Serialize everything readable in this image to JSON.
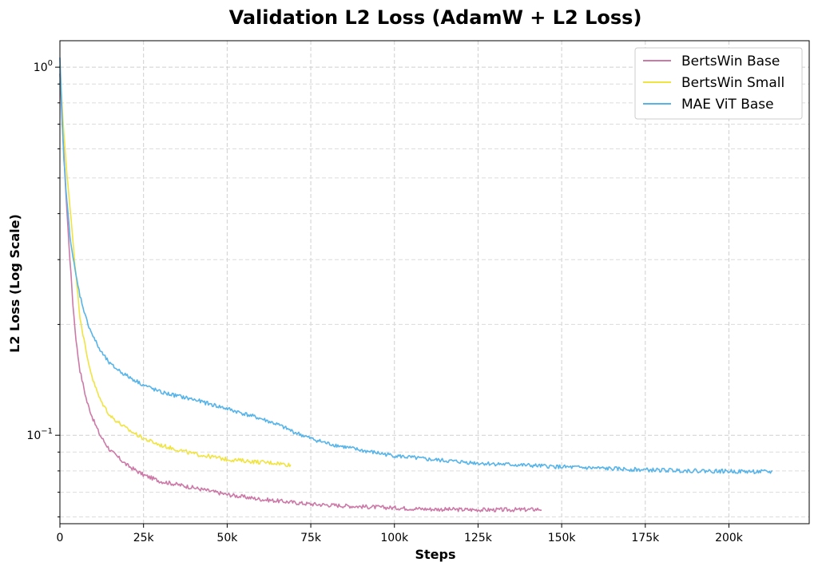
{
  "chart_data": {
    "type": "line",
    "title": "Validation L2 Loss (AdamW + L2 Loss)",
    "xlabel": "Steps",
    "ylabel": "L2 Loss (Log Scale)",
    "yscale": "log",
    "xlim": [
      0,
      224000
    ],
    "ylim": [
      0.0575,
      1.18
    ],
    "grid": true,
    "legend_position": "top-right",
    "x_ticks": [
      {
        "value": 0,
        "label": "0"
      },
      {
        "value": 25000,
        "label": "25k"
      },
      {
        "value": 50000,
        "label": "50k"
      },
      {
        "value": 75000,
        "label": "75k"
      },
      {
        "value": 100000,
        "label": "100k"
      },
      {
        "value": 125000,
        "label": "125k"
      },
      {
        "value": 150000,
        "label": "150k"
      },
      {
        "value": 175000,
        "label": "175k"
      },
      {
        "value": 200000,
        "label": "200k"
      }
    ],
    "y_ticks": [
      {
        "value": 1.0,
        "base": "10",
        "exp": "0"
      },
      {
        "value": 0.1,
        "base": "10",
        "exp": "−1"
      }
    ],
    "series": [
      {
        "name": "BertsWin Base",
        "color": "#cc79a7",
        "x": [
          0,
          1000,
          2000,
          3000,
          4000,
          5000,
          6000,
          8000,
          10000,
          12000,
          15000,
          20000,
          25000,
          30000,
          40000,
          50000,
          60000,
          75000,
          90000,
          100000,
          110000,
          120000,
          130000,
          140000,
          144000
        ],
        "y": [
          0.95,
          0.62,
          0.42,
          0.3,
          0.22,
          0.175,
          0.15,
          0.124,
          0.11,
          0.1,
          0.091,
          0.083,
          0.078,
          0.075,
          0.072,
          0.069,
          0.067,
          0.065,
          0.064,
          0.0635,
          0.063,
          0.0628,
          0.0627,
          0.0628,
          0.063
        ]
      },
      {
        "name": "BertsWin Small",
        "color": "#f0e442",
        "x": [
          0,
          1000,
          2000,
          3000,
          4000,
          5000,
          6000,
          8000,
          10000,
          12000,
          15000,
          20000,
          25000,
          30000,
          40000,
          50000,
          60000,
          65000,
          69000
        ],
        "y": [
          1.0,
          0.7,
          0.52,
          0.42,
          0.33,
          0.26,
          0.21,
          0.165,
          0.14,
          0.125,
          0.113,
          0.104,
          0.098,
          0.094,
          0.089,
          0.086,
          0.0845,
          0.084,
          0.083
        ]
      },
      {
        "name": "MAE ViT Base",
        "color": "#56b4e9",
        "x": [
          0,
          1000,
          2000,
          3000,
          4000,
          5000,
          6000,
          8000,
          10000,
          12000,
          15000,
          20000,
          25000,
          30000,
          40000,
          50000,
          60000,
          65000,
          70000,
          75000,
          80000,
          90000,
          100000,
          110000,
          125000,
          150000,
          175000,
          200000,
          213000
        ],
        "y": [
          1.05,
          0.6,
          0.44,
          0.35,
          0.3,
          0.265,
          0.24,
          0.205,
          0.185,
          0.17,
          0.156,
          0.145,
          0.137,
          0.131,
          0.125,
          0.118,
          0.111,
          0.107,
          0.102,
          0.098,
          0.095,
          0.091,
          0.088,
          0.086,
          0.084,
          0.082,
          0.0805,
          0.0798,
          0.0795
        ]
      }
    ]
  }
}
